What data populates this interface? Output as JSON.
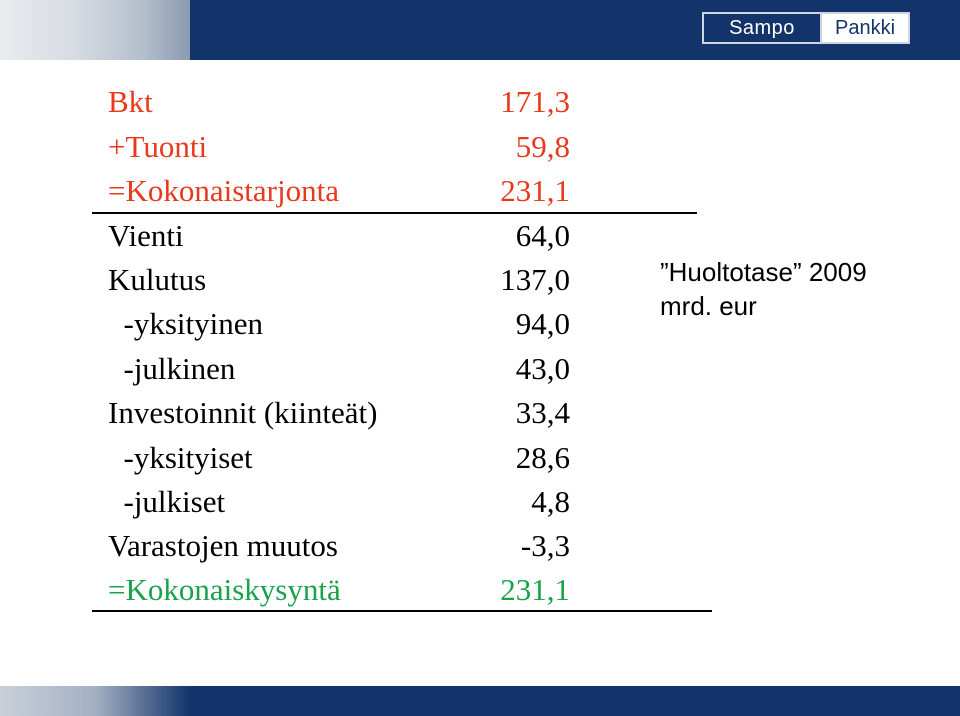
{
  "header": {
    "logo_left": "Sampo",
    "logo_right": "Pankki"
  },
  "colors": {
    "navy": "#13346a",
    "red": "#e8391c",
    "green": "#1aa24a"
  },
  "note": {
    "line1": "”Huoltotase” 2009",
    "line2": "mrd. eur"
  },
  "rows": [
    {
      "label": "Bkt",
      "value": "171,3"
    },
    {
      "label": "+Tuonti",
      "value": "59,8"
    },
    {
      "label": "=Kokonaistarjonta",
      "value": "231,1"
    },
    {
      "label": "Vienti",
      "value": "64,0"
    },
    {
      "label": "Kulutus",
      "value": "137,0"
    },
    {
      "label": "  -yksityinen",
      "value": "94,0"
    },
    {
      "label": "  -julkinen",
      "value": "43,0"
    },
    {
      "label": "Investoinnit (kiinteät)",
      "value": "33,4"
    },
    {
      "label": "  -yksityiset",
      "value": "28,6"
    },
    {
      "label": "  -julkiset",
      "value": "4,8"
    },
    {
      "label": "Varastojen muutos",
      "value": "-3,3"
    },
    {
      "label": "=Kokonaiskysyntä",
      "value": "231,1"
    }
  ]
}
